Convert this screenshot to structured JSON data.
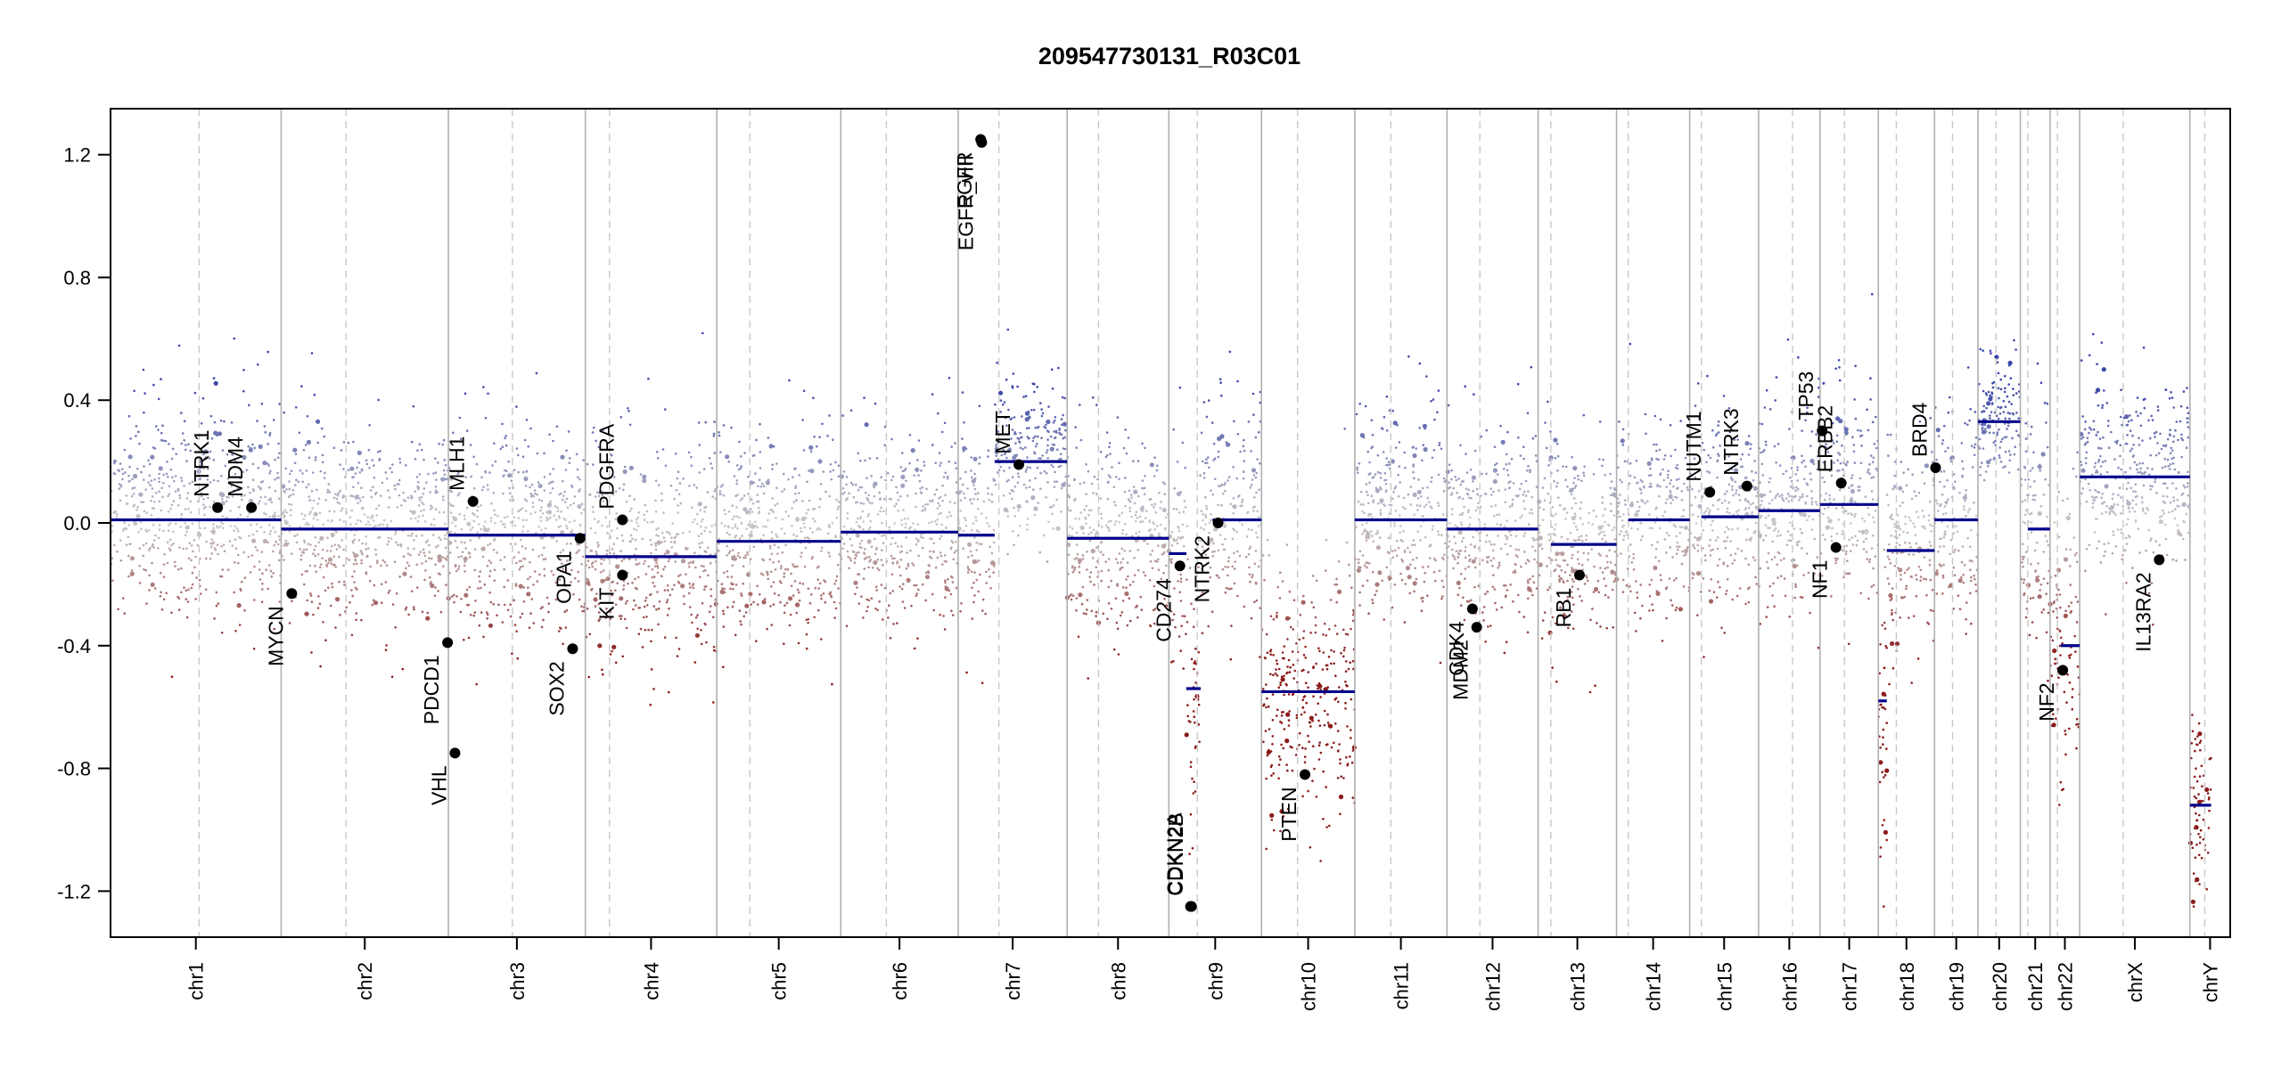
{
  "chart_data": {
    "type": "scatter",
    "title": "209547730131_R03C01",
    "xlabel": "",
    "ylabel": "",
    "ylim": [
      -1.35,
      1.35
    ],
    "y_ticks": [
      -1.2,
      -0.8,
      -0.4,
      0.0,
      0.4,
      0.8,
      1.2
    ],
    "y_tick_labels": [
      "-1.2",
      "-0.8",
      "-0.4",
      "0.0",
      "0.4",
      "0.8",
      "1.2"
    ],
    "colors": {
      "gain": "#3a45a8",
      "loss": "#8b1a1a",
      "segment": "#00008b",
      "neutral": "#bdbdbd",
      "divider": "#b0b0b0",
      "centromere": "#c8c8c8"
    },
    "chromosomes": [
      {
        "name": "chr1",
        "start": 0.0,
        "end": 0.0805,
        "centromere": 0.0418,
        "segments": [
          {
            "from": 0.0,
            "to": 0.0805,
            "value": 0.01
          }
        ]
      },
      {
        "name": "chr2",
        "start": 0.0805,
        "end": 0.1594,
        "centromere": 0.1111,
        "segments": [
          {
            "from": 0.0805,
            "to": 0.1594,
            "value": -0.02
          }
        ]
      },
      {
        "name": "chr3",
        "start": 0.1594,
        "end": 0.224,
        "centromere": 0.1896,
        "segments": [
          {
            "from": 0.1594,
            "to": 0.224,
            "value": -0.04
          }
        ]
      },
      {
        "name": "chr4",
        "start": 0.224,
        "end": 0.286,
        "centromere": 0.2354,
        "segments": [
          {
            "from": 0.224,
            "to": 0.286,
            "value": -0.11
          }
        ]
      },
      {
        "name": "chr5",
        "start": 0.286,
        "end": 0.3445,
        "centromere": 0.3016,
        "segments": [
          {
            "from": 0.286,
            "to": 0.3445,
            "value": -0.06
          }
        ]
      },
      {
        "name": "chr6",
        "start": 0.3445,
        "end": 0.3999,
        "centromere": 0.366,
        "segments": [
          {
            "from": 0.3445,
            "to": 0.3999,
            "value": -0.03
          }
        ]
      },
      {
        "name": "chr7",
        "start": 0.3999,
        "end": 0.4513,
        "centromere": 0.4191,
        "segments": [
          {
            "from": 0.3999,
            "to": 0.4171,
            "value": -0.04
          },
          {
            "from": 0.4171,
            "to": 0.4513,
            "value": 0.2
          }
        ]
      },
      {
        "name": "chr8",
        "start": 0.4513,
        "end": 0.4993,
        "centromere": 0.4661,
        "segments": [
          {
            "from": 0.4513,
            "to": 0.4993,
            "value": -0.05
          }
        ]
      },
      {
        "name": "chr9",
        "start": 0.4993,
        "end": 0.543,
        "centromere": 0.5127,
        "segments": [
          {
            "from": 0.4993,
            "to": 0.5075,
            "value": -0.1
          },
          {
            "from": 0.5075,
            "to": 0.5143,
            "value": -0.54
          },
          {
            "from": 0.5199,
            "to": 0.543,
            "value": 0.01
          }
        ]
      },
      {
        "name": "chr10",
        "start": 0.543,
        "end": 0.587,
        "centromere": 0.56,
        "segments": [
          {
            "from": 0.543,
            "to": 0.587,
            "value": -0.55
          }
        ]
      },
      {
        "name": "chr11",
        "start": 0.587,
        "end": 0.6305,
        "centromere": 0.604,
        "segments": [
          {
            "from": 0.587,
            "to": 0.6305,
            "value": 0.01
          }
        ]
      },
      {
        "name": "chr12",
        "start": 0.6305,
        "end": 0.6735,
        "centromere": 0.646,
        "segments": [
          {
            "from": 0.6305,
            "to": 0.6735,
            "value": -0.02
          }
        ]
      },
      {
        "name": "chr13",
        "start": 0.6735,
        "end": 0.7105,
        "centromere": 0.6795,
        "segments": [
          {
            "from": 0.6795,
            "to": 0.7105,
            "value": -0.07
          }
        ]
      },
      {
        "name": "chr14",
        "start": 0.7105,
        "end": 0.745,
        "centromere": 0.716,
        "segments": [
          {
            "from": 0.716,
            "to": 0.745,
            "value": 0.01
          }
        ]
      },
      {
        "name": "chr15",
        "start": 0.745,
        "end": 0.7775,
        "centromere": 0.7505,
        "segments": [
          {
            "from": 0.7505,
            "to": 0.7775,
            "value": 0.02
          }
        ]
      },
      {
        "name": "chr16",
        "start": 0.7775,
        "end": 0.8065,
        "centromere": 0.7935,
        "segments": [
          {
            "from": 0.7775,
            "to": 0.8065,
            "value": 0.04
          }
        ]
      },
      {
        "name": "chr17",
        "start": 0.8065,
        "end": 0.834,
        "centromere": 0.818,
        "segments": [
          {
            "from": 0.8065,
            "to": 0.834,
            "value": 0.06
          }
        ]
      },
      {
        "name": "chr18",
        "start": 0.834,
        "end": 0.8605,
        "centromere": 0.8425,
        "segments": [
          {
            "from": 0.834,
            "to": 0.838,
            "value": -0.58
          },
          {
            "from": 0.838,
            "to": 0.8605,
            "value": -0.09
          }
        ]
      },
      {
        "name": "chr19",
        "start": 0.8605,
        "end": 0.881,
        "centromere": 0.869,
        "segments": [
          {
            "from": 0.8605,
            "to": 0.881,
            "value": 0.01
          }
        ]
      },
      {
        "name": "chr20",
        "start": 0.881,
        "end": 0.901,
        "centromere": 0.8895,
        "segments": [
          {
            "from": 0.881,
            "to": 0.901,
            "value": 0.33
          }
        ]
      },
      {
        "name": "chr21",
        "start": 0.901,
        "end": 0.915,
        "centromere": 0.9045,
        "segments": [
          {
            "from": 0.9045,
            "to": 0.915,
            "value": -0.02
          }
        ]
      },
      {
        "name": "chr22",
        "start": 0.915,
        "end": 0.929,
        "centromere": 0.9185,
        "segments": [
          {
            "from": 0.92,
            "to": 0.929,
            "value": -0.4
          }
        ]
      },
      {
        "name": "chrX",
        "start": 0.929,
        "end": 0.981,
        "centromere": 0.9495,
        "segments": [
          {
            "from": 0.929,
            "to": 0.981,
            "value": 0.15
          }
        ]
      },
      {
        "name": "chrY",
        "start": 0.981,
        "end": 1.0,
        "centromere": 0.988,
        "segments": [
          {
            "from": 0.981,
            "to": 0.991,
            "value": -0.92
          }
        ]
      }
    ],
    "regions": [
      {
        "from": 0.0,
        "to": 0.0805,
        "mean": 0.01,
        "sd": 0.17,
        "gain_boost": 0.06
      },
      {
        "from": 0.0805,
        "to": 0.1594,
        "mean": -0.02,
        "sd": 0.16,
        "gain_boost": 0.05
      },
      {
        "from": 0.1594,
        "to": 0.224,
        "mean": -0.04,
        "sd": 0.17,
        "gain_boost": 0.05
      },
      {
        "from": 0.224,
        "to": 0.286,
        "mean": -0.11,
        "sd": 0.17,
        "gain_boost": 0.04
      },
      {
        "from": 0.286,
        "to": 0.3445,
        "mean": -0.06,
        "sd": 0.16,
        "gain_boost": 0.05
      },
      {
        "from": 0.3445,
        "to": 0.3999,
        "mean": -0.03,
        "sd": 0.16,
        "gain_boost": 0.05
      },
      {
        "from": 0.3999,
        "to": 0.4171,
        "mean": -0.04,
        "sd": 0.16,
        "gain_boost": 0.04
      },
      {
        "from": 0.4171,
        "to": 0.4513,
        "mean": 0.2,
        "sd": 0.12,
        "gain_boost": 0.08
      },
      {
        "from": 0.4513,
        "to": 0.4993,
        "mean": -0.05,
        "sd": 0.16,
        "gain_boost": 0.05
      },
      {
        "from": 0.4993,
        "to": 0.5075,
        "mean": -0.1,
        "sd": 0.18,
        "gain_boost": 0.03
      },
      {
        "from": 0.5075,
        "to": 0.5143,
        "mean": -0.54,
        "sd": 0.3,
        "gain_boost": 0.0
      },
      {
        "from": 0.5143,
        "to": 0.543,
        "mean": 0.01,
        "sd": 0.16,
        "gain_boost": 0.04
      },
      {
        "from": 0.543,
        "to": 0.587,
        "mean": -0.55,
        "sd": 0.2,
        "gain_boost": 0.0
      },
      {
        "from": 0.587,
        "to": 0.6305,
        "mean": 0.01,
        "sd": 0.16,
        "gain_boost": 0.06
      },
      {
        "from": 0.6305,
        "to": 0.6735,
        "mean": -0.02,
        "sd": 0.17,
        "gain_boost": 0.05
      },
      {
        "from": 0.6735,
        "to": 0.7105,
        "mean": -0.07,
        "sd": 0.16,
        "gain_boost": 0.04
      },
      {
        "from": 0.7105,
        "to": 0.745,
        "mean": 0.01,
        "sd": 0.16,
        "gain_boost": 0.05
      },
      {
        "from": 0.745,
        "to": 0.7775,
        "mean": 0.02,
        "sd": 0.16,
        "gain_boost": 0.05
      },
      {
        "from": 0.7775,
        "to": 0.8065,
        "mean": 0.04,
        "sd": 0.16,
        "gain_boost": 0.05
      },
      {
        "from": 0.8065,
        "to": 0.834,
        "mean": 0.06,
        "sd": 0.16,
        "gain_boost": 0.05
      },
      {
        "from": 0.834,
        "to": 0.838,
        "mean": -0.58,
        "sd": 0.25,
        "gain_boost": 0.0
      },
      {
        "from": 0.838,
        "to": 0.8605,
        "mean": -0.09,
        "sd": 0.17,
        "gain_boost": 0.03
      },
      {
        "from": 0.8605,
        "to": 0.881,
        "mean": 0.01,
        "sd": 0.17,
        "gain_boost": 0.05
      },
      {
        "from": 0.881,
        "to": 0.901,
        "mean": 0.33,
        "sd": 0.1,
        "gain_boost": 0.06
      },
      {
        "from": 0.901,
        "to": 0.915,
        "mean": -0.02,
        "sd": 0.17,
        "gain_boost": 0.03
      },
      {
        "from": 0.915,
        "to": 0.929,
        "mean": -0.4,
        "sd": 0.25,
        "gain_boost": 0.0
      },
      {
        "from": 0.929,
        "to": 0.981,
        "mean": 0.15,
        "sd": 0.16,
        "gain_boost": 0.05
      },
      {
        "from": 0.981,
        "to": 0.991,
        "mean": -0.92,
        "sd": 0.15,
        "gain_boost": 0.0
      }
    ],
    "genes": [
      {
        "label": "NTRK1",
        "pos": 0.0505,
        "value": 0.05,
        "label_side": "up"
      },
      {
        "label": "MDM4",
        "pos": 0.0665,
        "value": 0.05,
        "label_side": "up"
      },
      {
        "label": "MYCN",
        "pos": 0.0855,
        "value": -0.23,
        "label_side": "down"
      },
      {
        "label": "PDCD1",
        "pos": 0.159,
        "value": -0.39,
        "label_side": "down"
      },
      {
        "label": "VHL",
        "pos": 0.1625,
        "value": -0.75,
        "label_side": "down"
      },
      {
        "label": "MLH1",
        "pos": 0.171,
        "value": 0.07,
        "label_side": "up"
      },
      {
        "label": "SOX2",
        "pos": 0.218,
        "value": -0.41,
        "label_side": "down"
      },
      {
        "label": "OPA1",
        "pos": 0.2215,
        "value": -0.05,
        "label_side": "down"
      },
      {
        "label": "PDGFRA",
        "pos": 0.2415,
        "value": 0.01,
        "label_side": "up"
      },
      {
        "label": "KIT",
        "pos": 0.2415,
        "value": -0.17,
        "label_side": "down"
      },
      {
        "label": "EGFR",
        "pos": 0.4105,
        "value": 1.25,
        "label_side": "down"
      },
      {
        "label": "EGFR_vIII",
        "pos": 0.411,
        "value": 1.24,
        "label_side": "down"
      },
      {
        "label": "MET",
        "pos": 0.4285,
        "value": 0.19,
        "label_side": "up"
      },
      {
        "label": "CD274",
        "pos": 0.5045,
        "value": -0.14,
        "label_side": "down"
      },
      {
        "label": "CDKN2A",
        "pos": 0.5095,
        "value": -1.25,
        "label_side": "up"
      },
      {
        "label": "CDKN2B",
        "pos": 0.51,
        "value": -1.25,
        "label_side": "up"
      },
      {
        "label": "NTRK2",
        "pos": 0.5225,
        "value": 0.0,
        "label_side": "down"
      },
      {
        "label": "PTEN",
        "pos": 0.5635,
        "value": -0.82,
        "label_side": "down"
      },
      {
        "label": "CDK4",
        "pos": 0.6425,
        "value": -0.28,
        "label_side": "down"
      },
      {
        "label": "MDM2",
        "pos": 0.6445,
        "value": -0.34,
        "label_side": "down"
      },
      {
        "label": "RB1",
        "pos": 0.693,
        "value": -0.17,
        "label_side": "down"
      },
      {
        "label": "NUTM1",
        "pos": 0.7545,
        "value": 0.1,
        "label_side": "up"
      },
      {
        "label": "NTRK3",
        "pos": 0.772,
        "value": 0.12,
        "label_side": "up"
      },
      {
        "label": "TP53",
        "pos": 0.8075,
        "value": 0.3,
        "label_side": "up"
      },
      {
        "label": "ERBB2",
        "pos": 0.8165,
        "value": 0.13,
        "label_side": "up"
      },
      {
        "label": "NF1",
        "pos": 0.814,
        "value": -0.08,
        "label_side": "down"
      },
      {
        "label": "BRD4",
        "pos": 0.861,
        "value": 0.18,
        "label_side": "up"
      },
      {
        "label": "NF2",
        "pos": 0.921,
        "value": -0.48,
        "label_side": "down"
      },
      {
        "label": "IL13RA2",
        "pos": 0.9665,
        "value": -0.12,
        "label_side": "down"
      }
    ]
  }
}
